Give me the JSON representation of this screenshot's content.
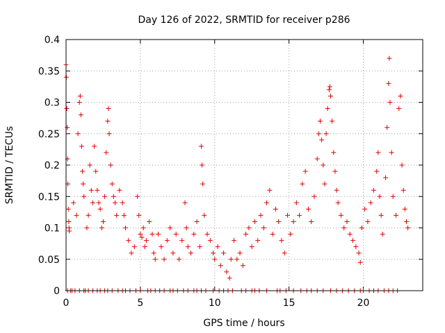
{
  "chart_data": {
    "type": "scatter",
    "title": "Day 126 of 2022, SRMTID for receiver p286",
    "xlabel": "GPS time / hours",
    "ylabel": "SRMTID / TECUs",
    "xlim": [
      0,
      24
    ],
    "ylim": [
      0,
      0.4
    ],
    "x_ticks": [
      0,
      5,
      10,
      15,
      20
    ],
    "x_tick_labels": [
      "0",
      "5",
      "10",
      "15",
      "20"
    ],
    "y_ticks": [
      0,
      0.05,
      0.1,
      0.15,
      0.2,
      0.25,
      0.3,
      0.35,
      0.4
    ],
    "y_tick_labels": [
      "0",
      "0.05",
      "0.1",
      "0.15",
      "0.2",
      "0.25",
      "0.3",
      "0.35",
      "0.4"
    ],
    "grid": true,
    "marker": "+",
    "color": "#e00000",
    "series": [
      {
        "name": "SRMTID",
        "points": [
          [
            0.0,
            0.36
          ],
          [
            0.02,
            0.34
          ],
          [
            0.05,
            0.29
          ],
          [
            0.08,
            0.26
          ],
          [
            0.1,
            0.21
          ],
          [
            0.12,
            0.17
          ],
          [
            0.15,
            0.13
          ],
          [
            0.18,
            0.11
          ],
          [
            0.2,
            0.1
          ],
          [
            0.22,
            0.095
          ],
          [
            0.5,
            0.14
          ],
          [
            0.7,
            0.12
          ],
          [
            0.8,
            0.25
          ],
          [
            0.9,
            0.3
          ],
          [
            0.95,
            0.31
          ],
          [
            1.0,
            0.28
          ],
          [
            1.05,
            0.23
          ],
          [
            1.1,
            0.19
          ],
          [
            1.15,
            0.17
          ],
          [
            1.2,
            0.15
          ],
          [
            1.4,
            0.1
          ],
          [
            1.5,
            0.12
          ],
          [
            1.6,
            0.2
          ],
          [
            1.7,
            0.16
          ],
          [
            1.8,
            0.14
          ],
          [
            1.9,
            0.23
          ],
          [
            2.0,
            0.19
          ],
          [
            2.1,
            0.16
          ],
          [
            2.2,
            0.14
          ],
          [
            2.3,
            0.13
          ],
          [
            2.4,
            0.1
          ],
          [
            2.5,
            0.11
          ],
          [
            2.6,
            0.15
          ],
          [
            2.7,
            0.22
          ],
          [
            2.8,
            0.27
          ],
          [
            2.85,
            0.29
          ],
          [
            2.9,
            0.25
          ],
          [
            3.0,
            0.2
          ],
          [
            3.1,
            0.17
          ],
          [
            3.2,
            0.15
          ],
          [
            3.3,
            0.14
          ],
          [
            3.4,
            0.12
          ],
          [
            3.6,
            0.16
          ],
          [
            3.8,
            0.14
          ],
          [
            3.9,
            0.12
          ],
          [
            4.0,
            0.1
          ],
          [
            4.2,
            0.08
          ],
          [
            4.4,
            0.06
          ],
          [
            4.6,
            0.07
          ],
          [
            4.8,
            0.15
          ],
          [
            4.9,
            0.12
          ],
          [
            5.0,
            0.09
          ],
          [
            5.1,
            0.085
          ],
          [
            5.2,
            0.1
          ],
          [
            5.3,
            0.07
          ],
          [
            5.4,
            0.08
          ],
          [
            5.6,
            0.11
          ],
          [
            5.8,
            0.09
          ],
          [
            5.9,
            0.06
          ],
          [
            6.0,
            0.05
          ],
          [
            6.2,
            0.09
          ],
          [
            6.4,
            0.07
          ],
          [
            6.6,
            0.05
          ],
          [
            6.8,
            0.08
          ],
          [
            7.0,
            0.1
          ],
          [
            7.2,
            0.06
          ],
          [
            7.4,
            0.09
          ],
          [
            7.6,
            0.05
          ],
          [
            7.8,
            0.08
          ],
          [
            8.0,
            0.14
          ],
          [
            8.1,
            0.1
          ],
          [
            8.2,
            0.07
          ],
          [
            8.4,
            0.06
          ],
          [
            8.6,
            0.09
          ],
          [
            8.8,
            0.11
          ],
          [
            9.0,
            0.07
          ],
          [
            9.1,
            0.23
          ],
          [
            9.15,
            0.2
          ],
          [
            9.2,
            0.17
          ],
          [
            9.3,
            0.12
          ],
          [
            9.5,
            0.09
          ],
          [
            9.7,
            0.08
          ],
          [
            9.9,
            0.06
          ],
          [
            10.0,
            0.05
          ],
          [
            10.2,
            0.07
          ],
          [
            10.4,
            0.04
          ],
          [
            10.6,
            0.06
          ],
          [
            10.8,
            0.03
          ],
          [
            11.0,
            0.02
          ],
          [
            11.1,
            0.05
          ],
          [
            11.3,
            0.08
          ],
          [
            11.5,
            0.05
          ],
          [
            11.7,
            0.06
          ],
          [
            11.9,
            0.04
          ],
          [
            12.1,
            0.09
          ],
          [
            12.3,
            0.1
          ],
          [
            12.5,
            0.07
          ],
          [
            12.7,
            0.11
          ],
          [
            12.9,
            0.08
          ],
          [
            13.1,
            0.12
          ],
          [
            13.3,
            0.1
          ],
          [
            13.5,
            0.14
          ],
          [
            13.7,
            0.16
          ],
          [
            13.9,
            0.09
          ],
          [
            14.1,
            0.13
          ],
          [
            14.3,
            0.11
          ],
          [
            14.5,
            0.08
          ],
          [
            14.7,
            0.06
          ],
          [
            14.9,
            0.12
          ],
          [
            15.1,
            0.09
          ],
          [
            15.3,
            0.11
          ],
          [
            15.5,
            0.14
          ],
          [
            15.7,
            0.12
          ],
          [
            15.9,
            0.17
          ],
          [
            16.1,
            0.19
          ],
          [
            16.3,
            0.13
          ],
          [
            16.5,
            0.11
          ],
          [
            16.7,
            0.15
          ],
          [
            16.9,
            0.21
          ],
          [
            17.0,
            0.25
          ],
          [
            17.1,
            0.27
          ],
          [
            17.2,
            0.24
          ],
          [
            17.3,
            0.2
          ],
          [
            17.4,
            0.17
          ],
          [
            17.5,
            0.25
          ],
          [
            17.6,
            0.29
          ],
          [
            17.7,
            0.32
          ],
          [
            17.75,
            0.325
          ],
          [
            17.8,
            0.31
          ],
          [
            17.9,
            0.27
          ],
          [
            18.0,
            0.22
          ],
          [
            18.1,
            0.19
          ],
          [
            18.2,
            0.16
          ],
          [
            18.3,
            0.14
          ],
          [
            18.5,
            0.12
          ],
          [
            18.7,
            0.1
          ],
          [
            18.9,
            0.11
          ],
          [
            19.1,
            0.09
          ],
          [
            19.3,
            0.08
          ],
          [
            19.5,
            0.07
          ],
          [
            19.7,
            0.06
          ],
          [
            19.8,
            0.045
          ],
          [
            19.9,
            0.1
          ],
          [
            20.1,
            0.13
          ],
          [
            20.3,
            0.11
          ],
          [
            20.5,
            0.14
          ],
          [
            20.7,
            0.16
          ],
          [
            20.9,
            0.19
          ],
          [
            21.0,
            0.22
          ],
          [
            21.1,
            0.15
          ],
          [
            21.2,
            0.12
          ],
          [
            21.3,
            0.09
          ],
          [
            21.5,
            0.18
          ],
          [
            21.6,
            0.26
          ],
          [
            21.7,
            0.33
          ],
          [
            21.75,
            0.37
          ],
          [
            21.8,
            0.3
          ],
          [
            21.9,
            0.22
          ],
          [
            22.0,
            0.15
          ],
          [
            22.2,
            0.12
          ],
          [
            22.4,
            0.29
          ],
          [
            22.5,
            0.31
          ],
          [
            22.6,
            0.2
          ],
          [
            22.7,
            0.16
          ],
          [
            22.8,
            0.13
          ],
          [
            22.9,
            0.11
          ],
          [
            23.0,
            0.1
          ]
        ]
      }
    ],
    "zero_points_x": [
      0.1,
      0.3,
      0.4,
      0.6,
      0.9,
      1.2,
      1.3,
      1.5,
      1.8,
      2.1,
      2.3,
      2.6,
      2.8,
      3.1,
      3.5,
      3.8,
      4.0,
      4.3,
      4.7,
      5.0,
      5.5,
      5.7,
      6.0,
      6.3,
      6.6,
      7.0,
      7.2,
      7.5,
      7.9,
      8.2,
      8.6,
      8.8,
      9.1,
      9.4,
      9.9,
      10.3,
      10.6,
      10.9,
      11.2,
      11.8,
      12.1,
      12.5,
      12.7,
      13.0,
      13.5,
      14.2,
      14.4,
      14.8,
      15.3,
      15.8,
      16.2,
      16.5,
      16.9,
      17.3,
      17.8,
      18.2,
      18.6,
      19.0,
      19.4,
      19.8,
      20.0,
      20.4,
      20.7,
      21.0,
      21.4,
      21.7,
      22.0,
      22.3
    ]
  }
}
